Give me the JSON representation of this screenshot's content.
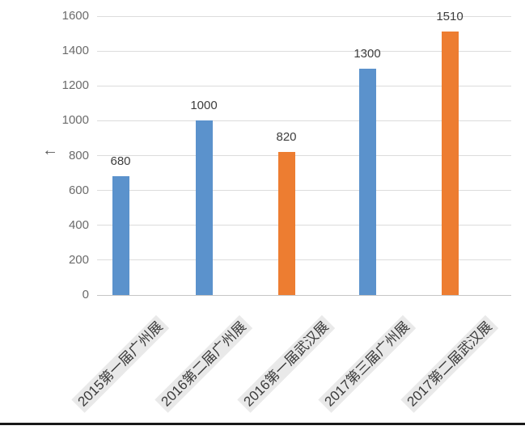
{
  "chart_data": {
    "type": "bar",
    "title": "",
    "xlabel": "",
    "ylabel": "",
    "categories": [
      "2015第一届广州展",
      "2016第二届广州展",
      "2016第一届武汉展",
      "2017第三届广州展",
      "2017第二届武汉展"
    ],
    "values": [
      680,
      1000,
      820,
      1300,
      1510
    ],
    "value_labels": [
      "680",
      "1000",
      "820",
      "1300",
      "1510"
    ],
    "bar_colors": [
      "#5b92cc",
      "#5b92cc",
      "#ed7d31",
      "#5b92cc",
      "#ed7d31"
    ],
    "yticks": [
      0,
      200,
      400,
      600,
      800,
      1000,
      1200,
      1400,
      1600
    ],
    "ylim": [
      0,
      1600
    ],
    "grid": true,
    "legend_position": "none"
  },
  "axis": {
    "arrow_glyph": "←"
  },
  "colors": {
    "bar_blue": "#5b92cc",
    "bar_orange": "#ed7d31",
    "gridline": "#dcdcdc",
    "zero_line": "#c6c6c6",
    "tick_text": "#6b6b6b",
    "value_text": "#3d3d3d",
    "category_text": "#3a3a3a",
    "category_bg": "#e9e9e9",
    "bottom_rule": "#181818"
  }
}
